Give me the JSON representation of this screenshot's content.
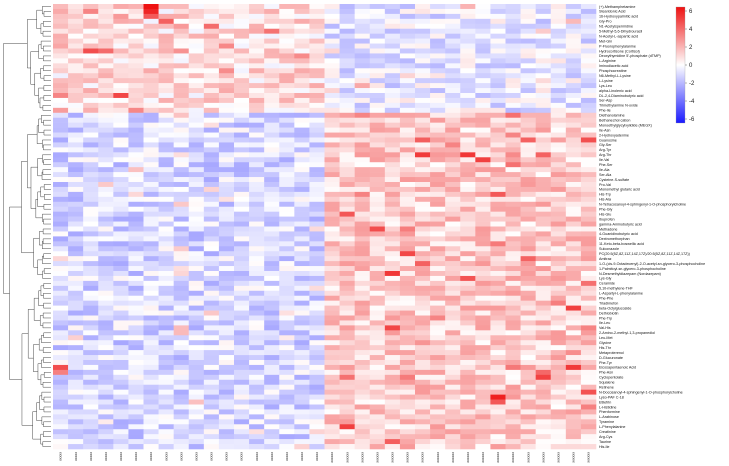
{
  "chart_data": {
    "type": "heatmap",
    "title": "",
    "colorbar": {
      "range": [
        -6,
        6
      ],
      "ticks": [
        "6",
        "4",
        "2",
        "0",
        "-2",
        "-4",
        "-6"
      ],
      "colors": {
        "low": "#1a1aff",
        "mid": "#ffffff",
        "high": "#ee1111"
      }
    },
    "groups": [
      {
        "label": "xxxxx",
        "count": 18
      },
      {
        "label": "xxxxxx",
        "count": 18
      }
    ],
    "columns": [
      "xxxxx",
      "xxxxx",
      "xxxxx",
      "xxxxx",
      "xxxxx",
      "xxxxx",
      "xxxxx",
      "xxxxx",
      "xxxxx",
      "xxxxx",
      "xxxxx",
      "xxxxx",
      "xxxxx",
      "xxxxx",
      "xxxxx",
      "xxxxx",
      "xxxxx",
      "xxxxx",
      "xxxxxx",
      "xxxxxx",
      "xxxxxx",
      "xxxxxx",
      "xxxxxx",
      "xxxxxx",
      "xxxxxx",
      "xxxxxx",
      "xxxxxx",
      "xxxxxx",
      "xxxxxx",
      "xxxxxx",
      "xxxxxx",
      "xxxxxx",
      "xxxxxx",
      "xxxxxx",
      "xxxxxx",
      "xxxxxx"
    ],
    "rows": [
      "(+)-Methamphetamine",
      "Stearidonic Acid",
      "16-Hydroxypalmitic acid",
      "Gly-Pro",
      "N1-Acetylspermidine",
      "5-Methyl-5,6-Dihydrouracil",
      "N-Acetyl-L-aspartic acid",
      "Met-Gln",
      "P-Fluorophenylalanine",
      "Hydrocortisone (Cortisol)",
      "Deoxythymidine 5'-phosphate (dTMP)",
      "L-Arginine",
      "Iminodiacetic acid",
      "Phosphocreatine",
      "N6-Methyl-L-Lysine",
      "L-Lysine",
      "Lys-Leu",
      "alpha-Linolenic acid",
      "DL-2,4-Diaminobutyric acid",
      "Ser-Asp",
      "Trimethylamine N-oxide",
      "Phe-Ile",
      "Diethanolamine",
      "Bethanechol cation",
      "Monoethylglycylxylidide (MEGX)",
      "Ile-Asn",
      "2-Hydroxyadenine",
      "Guanosine",
      "Gly-Ser",
      "Arg-Tyr",
      "Arg-Thr",
      "Ile-Val",
      "Phe-Ser",
      "Ile-Ala",
      "Ser-Ala",
      "Cysteine-S-sulfate",
      "Pro-Val",
      "Monomethyl glutaric acid",
      "His-Trp",
      "His-Ala",
      "N-Tetracosanoyl-4-sphingenyl-1-O-phosphorylcholine",
      "Phe-Gly",
      "His-Glu",
      "Ibuprofen",
      "gamma-Aminobutyric acid",
      "Methadone",
      "4-Guanidinobutyric acid",
      "Dextromethorphan",
      "11-Keto-beta-boswellic acid",
      "Sulconazole",
      "PC(20:5(5Z,8Z,11Z,14Z,17Z)/20:5(5Z,8Z,11Z,14Z,17Z))",
      "Amitraz",
      "1-O-(cis-9-Octadecenyl)-2-O-acetyl-sn-glycero-3-phosphocholine",
      "1-Palmitoyl-sn-glycero-3-phosphocholine",
      "N-Desmethyldiazepam (Nordazepam)",
      "Lys-Gly",
      "Ceramide",
      "5,10-methylene-THF",
      "L-Aspartyl-L-phenylalanine",
      "Phe-Phe",
      "Triadimefon",
      "beta-Octylglucoside",
      "Dethiobiotin",
      "Phe-Trp",
      "Ile-Leu",
      "Val-His",
      "2-Amino-2-methyl-1,3-propanediol",
      "Leu-Met",
      "Glycine",
      "His-Thr",
      "Metaproterenol",
      "D-Glucuronate",
      "Phe-Tyr",
      "Eicosapentaenoic Acid",
      "Phe-Asn",
      "Cyclopentolate",
      "Squalene",
      "Retinene",
      "N-Docosanoyl-4-sphingenyl-1-O-phosphorylcholine",
      "Lyso-PAF C-18",
      "Etilefrin",
      "L-Histidine",
      "Phenformine",
      "L-Arabinose",
      "Tyramine",
      "L-Phenylalanine",
      "Creatinine",
      "Arg-Cys",
      "Taurine",
      "His-Ile"
    ]
  }
}
